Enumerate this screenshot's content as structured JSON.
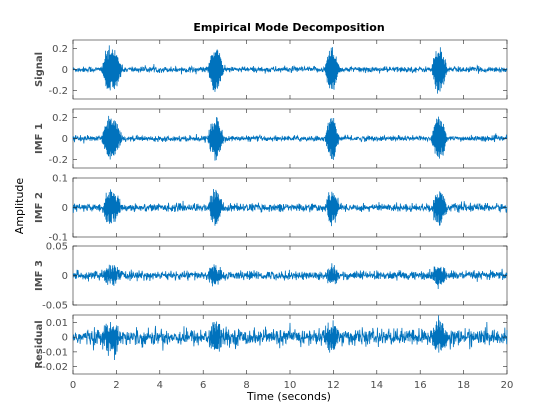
{
  "chart_data": {
    "type": "line",
    "title": "Empirical Mode Decomposition",
    "xlabel": "Time (seconds)",
    "ylabel": "Amplitude",
    "xlim": [
      0,
      20
    ],
    "x_ticks": [
      "0",
      "2",
      "4",
      "6",
      "8",
      "10",
      "12",
      "14",
      "16",
      "18",
      "20"
    ],
    "line_color": "#0072bd",
    "grid": false,
    "bursts": [
      {
        "start": 1.3,
        "end": 2.6
      },
      {
        "start": 6.2,
        "end": 7.2
      },
      {
        "start": 11.6,
        "end": 12.5
      },
      {
        "start": 16.5,
        "end": 17.5
      }
    ],
    "panels": [
      {
        "name": "Signal",
        "ylim": [
          -0.28,
          0.28
        ],
        "y_ticks": [
          {
            "v": 0.2,
            "t": "0.2"
          },
          {
            "v": 0,
            "t": "0"
          },
          {
            "v": -0.2,
            "t": "-0.2"
          }
        ],
        "noise_level": 0.03,
        "burst_peak": 0.26
      },
      {
        "name": "IMF 1",
        "ylim": [
          -0.28,
          0.28
        ],
        "y_ticks": [
          {
            "v": 0.2,
            "t": "0.2"
          },
          {
            "v": 0,
            "t": "0"
          },
          {
            "v": -0.2,
            "t": "-0.2"
          }
        ],
        "noise_level": 0.028,
        "burst_peak": 0.24
      },
      {
        "name": "IMF 2",
        "ylim": [
          -0.1,
          0.1
        ],
        "y_ticks": [
          {
            "v": 0.1,
            "t": "0.1"
          },
          {
            "v": 0,
            "t": "0"
          },
          {
            "v": -0.1,
            "t": "-0.1"
          }
        ],
        "noise_level": 0.015,
        "burst_peak": 0.065
      },
      {
        "name": "IMF 3",
        "ylim": [
          -0.05,
          0.05
        ],
        "y_ticks": [
          {
            "v": 0.05,
            "t": "0.05"
          },
          {
            "v": 0,
            "t": "0"
          },
          {
            "v": -0.05,
            "t": "-0.05"
          }
        ],
        "noise_level": 0.008,
        "burst_peak": 0.02
      },
      {
        "name": "Residual",
        "ylim": [
          -0.025,
          0.015
        ],
        "y_ticks": [
          {
            "v": 0.01,
            "t": "0.01"
          },
          {
            "v": 0,
            "t": "0"
          },
          {
            "v": -0.01,
            "t": "-0.01"
          },
          {
            "v": -0.02,
            "t": "-0.02"
          }
        ],
        "noise_level": 0.006,
        "burst_peak": 0.012
      }
    ]
  }
}
